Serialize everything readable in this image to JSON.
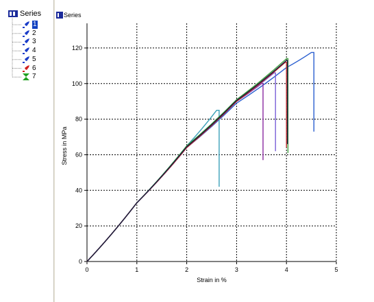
{
  "tree": {
    "root_label": "Series",
    "items": [
      {
        "label": "1",
        "selected": true,
        "icon": "blue-specimen-icon",
        "color": "#1a3cc8"
      },
      {
        "label": "2",
        "selected": false,
        "icon": "blue-specimen-icon",
        "color": "#1a3cc8"
      },
      {
        "label": "3",
        "selected": false,
        "icon": "blue-specimen-icon",
        "color": "#1a3cc8"
      },
      {
        "label": "4",
        "selected": false,
        "icon": "blue-specimen-icon",
        "color": "#1a3cc8"
      },
      {
        "label": "5",
        "selected": false,
        "icon": "blue-specimen-icon",
        "color": "#1a3cc8"
      },
      {
        "label": "6",
        "selected": false,
        "icon": "red-specimen-icon",
        "color": "#d02020"
      },
      {
        "label": "7",
        "selected": false,
        "icon": "green-hourglass-icon",
        "color": "#20a020"
      }
    ]
  },
  "chart_header": {
    "label": "Series"
  },
  "chart_data": {
    "type": "line",
    "title": "",
    "xlabel": "Strain in %",
    "ylabel": "Stress in MPa",
    "xlim": [
      0,
      5
    ],
    "ylim": [
      0,
      130
    ],
    "xticks": [
      0,
      1,
      2,
      3,
      4,
      5
    ],
    "yticks": [
      0,
      20,
      40,
      60,
      80,
      100,
      120
    ],
    "grid": true,
    "series": [
      {
        "color": "#2a5fd0",
        "x": [
          0,
          1,
          2,
          3,
          4,
          4.5
        ],
        "y": [
          0,
          33,
          64,
          89,
          109,
          117.5
        ],
        "break_x": 4.55,
        "break_y_end": 73
      },
      {
        "color": "#3aa0b8",
        "x": [
          0,
          1,
          2,
          2.6
        ],
        "y": [
          0,
          33,
          65,
          85
        ],
        "break_x": 2.65,
        "break_y_end": 42
      },
      {
        "color": "#8a2aa0",
        "x": [
          0,
          1,
          2,
          3,
          3.5
        ],
        "y": [
          0,
          33,
          64,
          90,
          100
        ],
        "break_x": 3.53,
        "break_y_end": 57
      },
      {
        "color": "#7a5fd8",
        "x": [
          0,
          1,
          2,
          3,
          3.75
        ],
        "y": [
          0,
          33,
          64,
          90,
          106
        ],
        "break_x": 3.78,
        "break_y_end": 62
      },
      {
        "color": "#40a040",
        "x": [
          0,
          1,
          2,
          3,
          4.0
        ],
        "y": [
          0,
          33,
          65,
          91,
          114
        ],
        "break_x": 4.03,
        "break_y_end": 61
      },
      {
        "color": "#c03030",
        "x": [
          0,
          1,
          2,
          3,
          3.98
        ],
        "y": [
          0,
          33,
          64,
          90,
          112
        ],
        "break_x": 4.0,
        "break_y_end": 64
      },
      {
        "color": "#1a1a3a",
        "x": [
          0,
          1,
          2,
          3,
          4.0
        ],
        "y": [
          0,
          33,
          64.5,
          90.5,
          113
        ],
        "break_x": 4.02,
        "break_y_end": 66
      }
    ]
  }
}
